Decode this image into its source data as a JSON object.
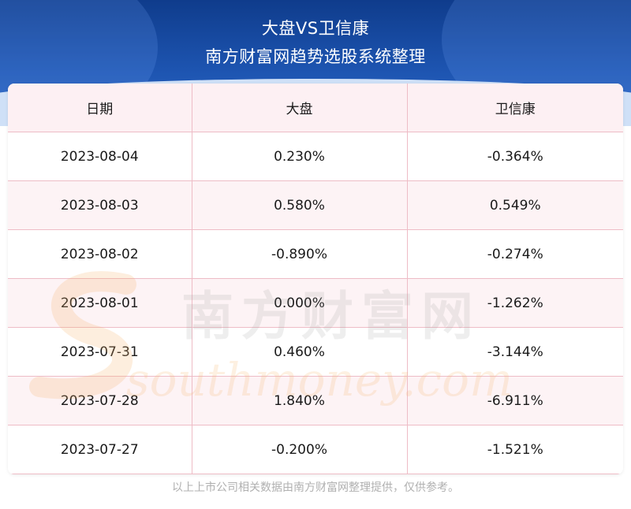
{
  "header": {
    "title": "大盘VS卫信康",
    "subtitle": "南方财富网趋势选股系统整理"
  },
  "table": {
    "columns": [
      "日期",
      "大盘",
      "卫信康"
    ],
    "rows": [
      [
        "2023-08-04",
        "0.230%",
        "-0.364%"
      ],
      [
        "2023-08-03",
        "0.580%",
        "0.549%"
      ],
      [
        "2023-08-02",
        "-0.890%",
        "-0.274%"
      ],
      [
        "2023-08-01",
        "0.000%",
        "-1.262%"
      ],
      [
        "2023-07-31",
        "0.460%",
        "-3.144%"
      ],
      [
        "2023-07-28",
        "1.840%",
        "-6.911%"
      ],
      [
        "2023-07-27",
        "-0.200%",
        "-1.521%"
      ]
    ]
  },
  "watermark": {
    "cn": "南方财富网",
    "en": "southmoney.com"
  },
  "footer": {
    "note": "以上上市公司相关数据由南方财富网整理提供，仅供参考。"
  },
  "colors": {
    "header_bg": "#1d54b0",
    "row_border": "#eebcc6",
    "row_alt": "#fdf3f5",
    "watermark_orange": "#f4b26a"
  }
}
